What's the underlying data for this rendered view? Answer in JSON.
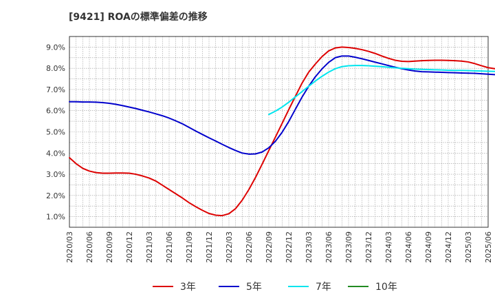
{
  "chart_data": {
    "type": "line",
    "title": "[9421]  ROAの標準偏差の推移",
    "xlabel": "",
    "ylabel": "",
    "ylim": [
      0.5,
      9.5
    ],
    "yticks": [
      1.0,
      2.0,
      3.0,
      4.0,
      5.0,
      6.0,
      7.0,
      8.0,
      9.0
    ],
    "ytick_labels": [
      "1.0%",
      "2.0%",
      "3.0%",
      "4.0%",
      "5.0%",
      "6.0%",
      "7.0%",
      "8.0%",
      "9.0%"
    ],
    "xticks": [
      "2020/03",
      "2020/06",
      "2020/09",
      "2020/12",
      "2021/03",
      "2021/06",
      "2021/09",
      "2021/12",
      "2022/03",
      "2022/06",
      "2022/09",
      "2022/12",
      "2023/03",
      "2023/06",
      "2023/09",
      "2023/12",
      "2024/03",
      "2024/06",
      "2024/09",
      "2024/12",
      "2025/03",
      "2025/06"
    ],
    "grid": true,
    "legend_position": "bottom",
    "series": [
      {
        "name": "3年",
        "color": "#dd0000",
        "start_index": 0,
        "values": [
          3.78,
          3.5,
          3.28,
          3.15,
          3.08,
          3.05,
          3.05,
          3.06,
          3.06,
          3.05,
          3.0,
          2.92,
          2.82,
          2.68,
          2.48,
          2.28,
          2.08,
          1.88,
          1.66,
          1.47,
          1.3,
          1.15,
          1.07,
          1.05,
          1.14,
          1.38,
          1.78,
          2.28,
          2.85,
          3.48,
          4.12,
          4.76,
          5.4,
          6.05,
          6.68,
          7.3,
          7.82,
          8.2,
          8.55,
          8.82,
          8.96,
          9.0,
          8.98,
          8.94,
          8.88,
          8.8,
          8.7,
          8.58,
          8.47,
          8.38,
          8.33,
          8.32,
          8.34,
          8.36,
          8.37,
          8.38,
          8.38,
          8.37,
          8.36,
          8.34,
          8.3,
          8.22,
          8.12,
          8.03,
          7.98,
          7.96,
          7.95,
          7.96,
          7.96,
          7.94
        ]
      },
      {
        "name": "5年",
        "color": "#0000cc",
        "start_index": 0,
        "values": [
          6.42,
          6.42,
          6.41,
          6.41,
          6.4,
          6.38,
          6.35,
          6.3,
          6.24,
          6.17,
          6.1,
          6.02,
          5.94,
          5.85,
          5.76,
          5.65,
          5.52,
          5.38,
          5.21,
          5.04,
          4.88,
          4.72,
          4.57,
          4.41,
          4.26,
          4.12,
          4.0,
          3.95,
          3.96,
          4.05,
          4.25,
          4.56,
          4.98,
          5.49,
          6.07,
          6.64,
          7.15,
          7.6,
          7.97,
          8.28,
          8.5,
          8.58,
          8.58,
          8.52,
          8.45,
          8.37,
          8.29,
          8.21,
          8.13,
          8.05,
          7.98,
          7.92,
          7.87,
          7.84,
          7.83,
          7.82,
          7.81,
          7.8,
          7.79,
          7.78,
          7.77,
          7.76,
          7.74,
          7.72,
          7.7,
          7.68,
          7.66,
          7.64,
          7.62,
          7.6,
          7.58,
          7.56
        ]
      },
      {
        "name": "7年",
        "color": "#00e5ee",
        "start_index": 30,
        "values": [
          5.82,
          5.98,
          6.17,
          6.4,
          6.65,
          6.9,
          7.15,
          7.4,
          7.62,
          7.82,
          7.98,
          8.08,
          8.12,
          8.13,
          8.13,
          8.12,
          8.1,
          8.08,
          8.05,
          8.02,
          8.0,
          7.98,
          7.96,
          7.95,
          7.94,
          7.93,
          7.92,
          7.91,
          7.9,
          7.9,
          7.89,
          7.88,
          7.87,
          7.86,
          7.85,
          7.83,
          7.8,
          7.77,
          7.73,
          7.68,
          7.62,
          7.52
        ]
      },
      {
        "name": "10年",
        "color": "#228b22",
        "start_index": 0,
        "values": []
      }
    ]
  }
}
